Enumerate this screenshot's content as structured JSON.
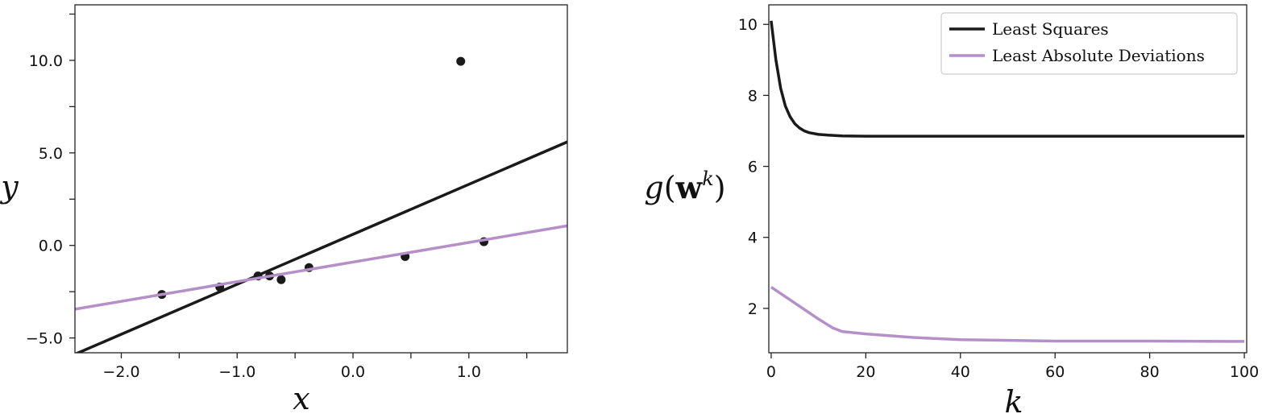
{
  "chart_data": [
    {
      "type": "scatter",
      "xlabel": "x",
      "ylabel": "y",
      "xlim": [
        -2.4,
        1.85
      ],
      "ylim": [
        -5.8,
        13.0
      ],
      "xticks": [
        -2.0,
        -1.0,
        0.0,
        1.0
      ],
      "xtick_labels": [
        "−2.0",
        "−1.0",
        "0.0",
        "1.0"
      ],
      "xticks_minor": [
        -1.5,
        -0.5,
        0.5,
        1.5
      ],
      "yticks": [
        -5.0,
        0.0,
        5.0,
        10.0
      ],
      "ytick_labels": [
        "−5.0",
        "0.0",
        "5.0",
        "10.0"
      ],
      "yticks_minor": [
        -2.5,
        2.5,
        7.5,
        12.5
      ],
      "points": [
        {
          "x": -1.65,
          "y": -2.65
        },
        {
          "x": -1.15,
          "y": -2.25
        },
        {
          "x": -0.82,
          "y": -1.65
        },
        {
          "x": -0.72,
          "y": -1.65
        },
        {
          "x": -0.62,
          "y": -1.85
        },
        {
          "x": -0.38,
          "y": -1.2
        },
        {
          "x": 0.45,
          "y": -0.6
        },
        {
          "x": 0.93,
          "y": 9.95
        },
        {
          "x": 1.13,
          "y": 0.2
        }
      ],
      "lines": [
        {
          "color": "#1a1a1a",
          "slope": 2.7,
          "intercept": 0.6
        },
        {
          "color": "#b48fc8",
          "slope": 1.06,
          "intercept": -0.9
        }
      ],
      "point_color": "#1a1a1a"
    },
    {
      "type": "line",
      "xlabel": "k",
      "ylabel": "g(w^k)",
      "ylabel_base": "g(",
      "ylabel_bold": "w",
      "ylabel_sup": "k",
      "ylabel_close": ")",
      "xlim": [
        -0.5,
        100.5
      ],
      "ylim": [
        0.75,
        10.55
      ],
      "xticks": [
        0,
        20,
        40,
        60,
        80,
        100
      ],
      "xtick_labels": [
        "0",
        "20",
        "40",
        "60",
        "80",
        "100"
      ],
      "yticks": [
        2,
        4,
        6,
        8,
        10
      ],
      "ytick_labels": [
        "2",
        "4",
        "6",
        "8",
        "10"
      ],
      "legend_position": "upper-right",
      "series": [
        {
          "name": "Least Squares",
          "color": "#1a1a1a",
          "x": [
            0,
            1,
            2,
            3,
            4,
            5,
            6,
            7,
            8,
            10,
            12,
            15,
            20,
            30,
            50,
            100
          ],
          "y": [
            10.1,
            9.0,
            8.2,
            7.7,
            7.4,
            7.2,
            7.08,
            7.0,
            6.95,
            6.9,
            6.88,
            6.86,
            6.85,
            6.85,
            6.85,
            6.85
          ]
        },
        {
          "name": "Least Absolute Deviations",
          "color": "#b48fc8",
          "x": [
            0,
            5,
            10,
            13,
            15,
            20,
            30,
            40,
            60,
            80,
            100
          ],
          "y": [
            2.6,
            2.15,
            1.7,
            1.45,
            1.35,
            1.28,
            1.18,
            1.12,
            1.08,
            1.08,
            1.07
          ]
        }
      ]
    }
  ]
}
